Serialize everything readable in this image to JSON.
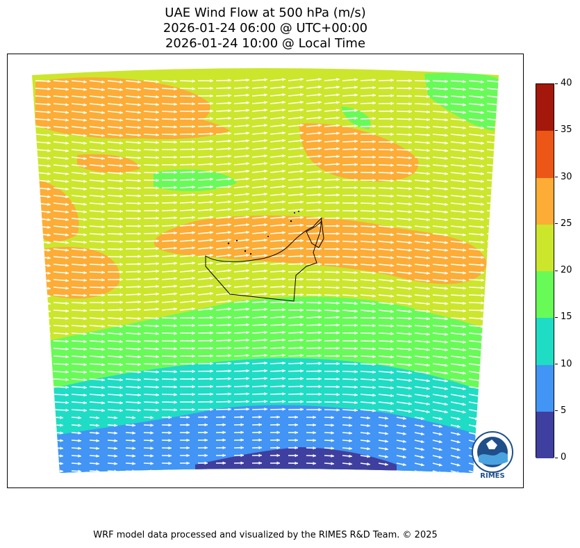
{
  "title": {
    "line1": "UAE Wind Flow at 500 hPa (m/s)",
    "line2": "2026-01-24 06:00 @ UTC+00:00",
    "line3": "2026-01-24 10:00 @ Local Time"
  },
  "colorbar": {
    "ticks": [
      "0",
      "5",
      "10",
      "15",
      "20",
      "25",
      "30",
      "35",
      "40"
    ],
    "colors": [
      "#3f3f9f",
      "#4294f5",
      "#1fdcc5",
      "#68fb58",
      "#cce62c",
      "#fdac36",
      "#ec5616",
      "#a3180a"
    ],
    "range": [
      0,
      40
    ]
  },
  "logo": {
    "text": "RIMES",
    "ring_text": "Regional Integrated Multi-Hazard Early Warning System"
  },
  "footer": "WRF model data processed and visualized by the RIMES R&D Team. © 2025",
  "colors": {
    "arrow": "#ffffff",
    "coastline": "#000000"
  }
}
